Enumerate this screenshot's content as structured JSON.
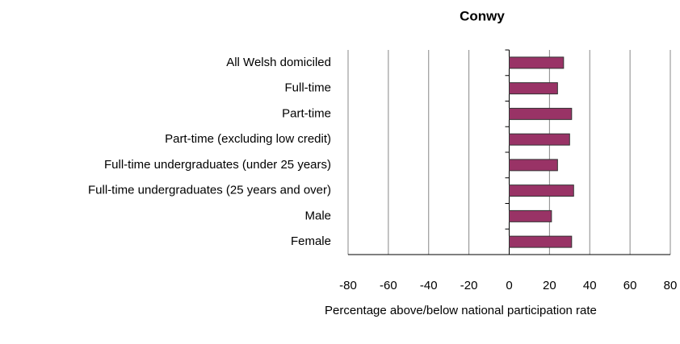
{
  "chart_data": {
    "type": "barh",
    "title": "Conwy",
    "categories": [
      "All Welsh domiciled",
      "Full-time",
      "Part-time",
      "Part-time (excluding low credit)",
      "Full-time undergraduates (under 25 years)",
      "Full-time undergraduates (25 years and over)",
      "Male",
      "Female"
    ],
    "values": [
      27,
      24,
      31,
      30,
      24,
      32,
      21,
      31
    ],
    "color": "#993366",
    "xlim": [
      -80,
      80
    ],
    "xticks": [
      -80,
      -60,
      -40,
      -20,
      0,
      20,
      40,
      60,
      80
    ],
    "xlabel": "Percentage above/below national participation rate",
    "grid": true
  }
}
